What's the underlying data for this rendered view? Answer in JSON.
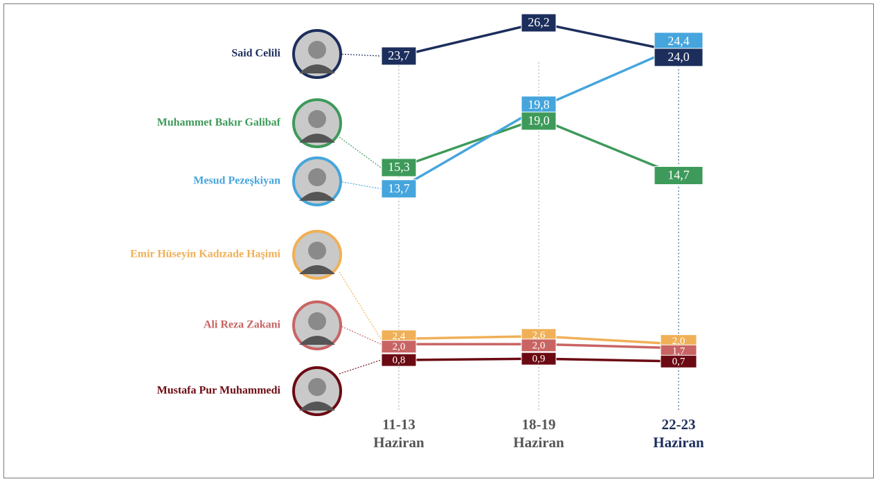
{
  "chart_data": {
    "type": "line",
    "categories": [
      "11-13 Haziran",
      "18-19 Haziran",
      "22-23 Haziran"
    ],
    "category_colors": [
      "#555555",
      "#555555",
      "#1c2e5c"
    ],
    "series": [
      {
        "name": "Said Celili",
        "color": "#1c2e5c",
        "values": [
          23.7,
          26.2,
          24.0
        ],
        "value_labels": [
          "23,7",
          "26,2",
          "24,0"
        ]
      },
      {
        "name": "Muhammet Bakır Galibaf",
        "color": "#3e9a5a",
        "values": [
          15.3,
          19.0,
          14.7
        ],
        "value_labels": [
          "15,3",
          "19,0",
          "14,7"
        ]
      },
      {
        "name": "Mesud Pezeşkiyan",
        "color": "#46a5dc",
        "values": [
          13.7,
          19.8,
          24.4
        ],
        "value_labels": [
          "13,7",
          "19,8",
          "24,4"
        ]
      },
      {
        "name": "Emir Hüseyin Kadızade Haşimi",
        "color": "#f0b057",
        "values": [
          2.4,
          2.6,
          2.0
        ],
        "value_labels": [
          "2,4",
          "2,6",
          "2,0"
        ]
      },
      {
        "name": "Ali Reza Zakani",
        "color": "#c86464",
        "values": [
          2.0,
          2.0,
          1.7
        ],
        "value_labels": [
          "2,0",
          "2,0",
          "1,7"
        ]
      },
      {
        "name": "Mustafa Pur Muhammedi",
        "color": "#6b0a12",
        "values": [
          0.8,
          0.9,
          0.7
        ],
        "value_labels": [
          "0,8",
          "0,9",
          "0,7"
        ]
      }
    ]
  }
}
